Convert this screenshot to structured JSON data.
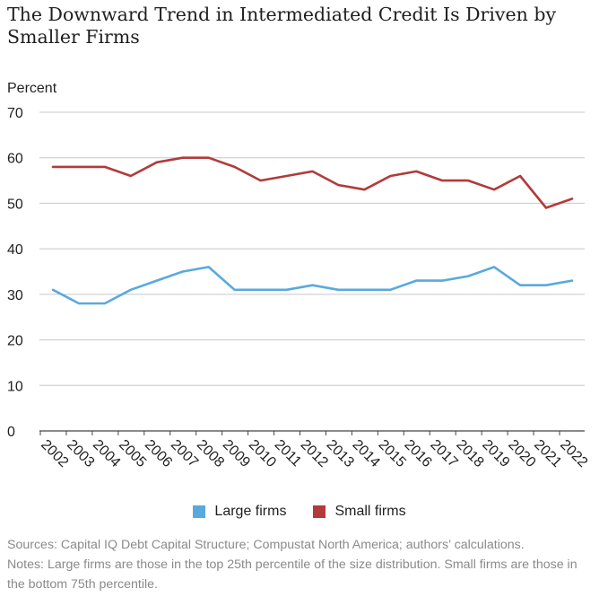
{
  "chart_data": {
    "type": "line",
    "title": "The Downward Trend in Intermediated Credit Is Driven by Smaller Firms",
    "ylabel": "Percent",
    "xlabel": "",
    "ylim": [
      0,
      70
    ],
    "yticks": [
      0,
      10,
      20,
      30,
      40,
      50,
      60,
      70
    ],
    "grid": true,
    "legend_position": "bottom",
    "categories": [
      "2002",
      "2003",
      "2004",
      "2005",
      "2006",
      "2007",
      "2008",
      "2009",
      "2010",
      "2011",
      "2012",
      "2013",
      "2014",
      "2015",
      "2016",
      "2017",
      "2018",
      "2019",
      "2020",
      "2021",
      "2022"
    ],
    "series": [
      {
        "name": "Large firms",
        "color": "#5aa9dd",
        "values": [
          31,
          28,
          28,
          31,
          33,
          35,
          36,
          31,
          31,
          31,
          32,
          31,
          31,
          31,
          33,
          33,
          34,
          36,
          32,
          32,
          33
        ]
      },
      {
        "name": "Small firms",
        "color": "#b23a3a",
        "values": [
          58,
          58,
          58,
          56,
          59,
          60,
          60,
          58,
          55,
          56,
          57,
          54,
          53,
          56,
          57,
          55,
          55,
          53,
          56,
          49,
          51
        ]
      }
    ]
  },
  "footnotes": {
    "sources": "Sources: Capital IQ Debt Capital Structure; Compustat North America; authors’ calculations.",
    "notes": "Notes: Large firms are those in the top 25th percentile of the size distribution. Small firms are those in the bottom 75th percentile."
  }
}
